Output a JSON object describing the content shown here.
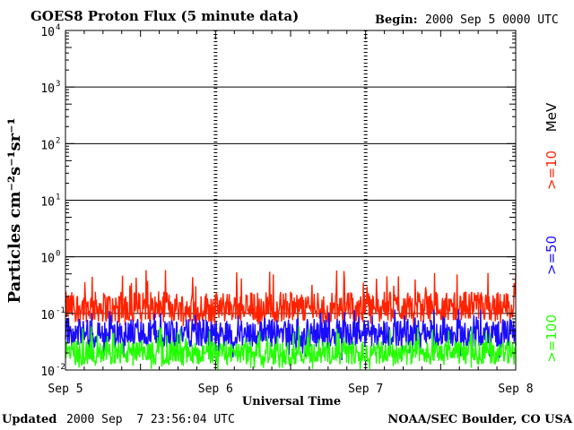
{
  "header": {
    "title": "GOES8 Proton Flux (5 minute data)",
    "begin_label": "Begin:",
    "begin_value": "2000 Sep 5 0000 UTC"
  },
  "footer": {
    "updated_label": "Updated",
    "updated_value": "2000 Sep  7 23:56:04 UTC",
    "credit": "NOAA/SEC Boulder, CO USA"
  },
  "chart_data": {
    "type": "line",
    "title": "GOES8 Proton Flux (5 minute data)",
    "xlabel": "Universal Time",
    "ylabel": "Particles cm⁻²s⁻¹sr⁻¹",
    "y_scale": "log",
    "ylim": [
      0.01,
      10000
    ],
    "xlim": [
      "2000-09-05 00:00",
      "2000-09-08 00:00"
    ],
    "x_ticks": [
      "Sep 5",
      "Sep 6",
      "Sep 7",
      "Sep 8"
    ],
    "y_ticks": [
      {
        "base": "10",
        "exp": "-2",
        "value": 0.01
      },
      {
        "base": "10",
        "exp": "-1",
        "value": 0.1
      },
      {
        "base": "10",
        "exp": "0",
        "value": 1
      },
      {
        "base": "10",
        "exp": "1",
        "value": 10
      },
      {
        "base": "10",
        "exp": "2",
        "value": 100
      },
      {
        "base": "10",
        "exp": "3",
        "value": 1000
      },
      {
        "base": "10",
        "exp": "4",
        "value": 10000
      }
    ],
    "grid": true,
    "unit_label": "MeV",
    "series": [
      {
        "name": ">=10",
        "color": "#ff2200",
        "typical_value": 0.13,
        "min_value": 0.06,
        "max_value": 0.6
      },
      {
        "name": ">=50",
        "color": "#1a0cff",
        "typical_value": 0.045,
        "min_value": 0.015,
        "max_value": 0.12
      },
      {
        "name": ">=100",
        "color": "#22ff00",
        "typical_value": 0.02,
        "min_value": 0.01,
        "max_value": 0.06
      }
    ]
  }
}
